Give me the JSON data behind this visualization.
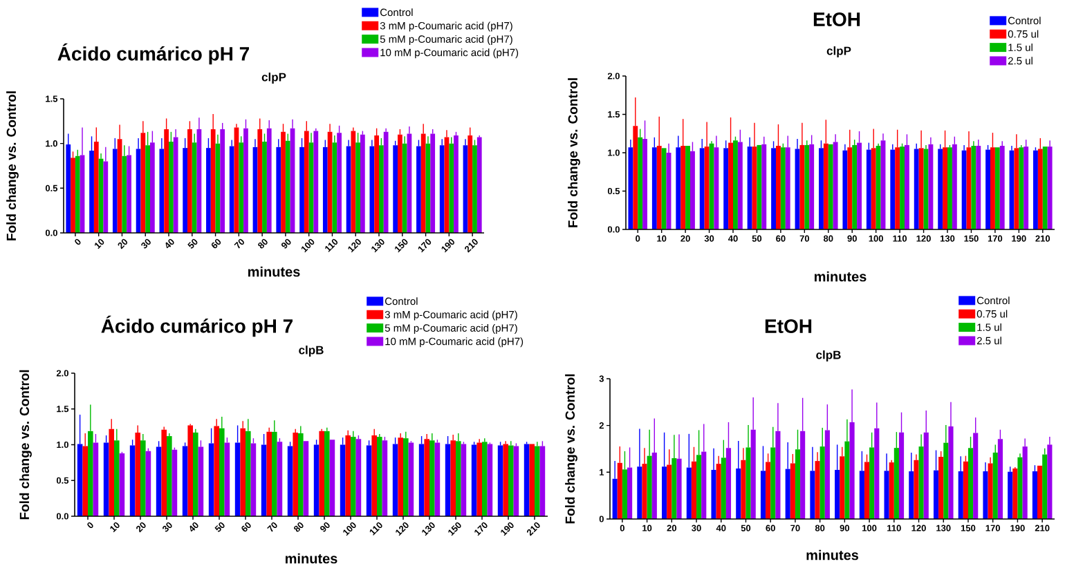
{
  "chart_data": [
    {
      "type": "bar",
      "title": "Ácido cumárico pH 7",
      "subtitle": "clpP",
      "xlabel": "minutes",
      "ylabel": "Fold change vs. Control",
      "legend": "top right",
      "categories": [
        "0",
        "10",
        "20",
        "30",
        "40",
        "50",
        "60",
        "70",
        "80",
        "90",
        "100",
        "110",
        "120",
        "130",
        "150",
        "170",
        "190",
        "210"
      ],
      "ylim": [
        0,
        1.5
      ],
      "yticks": [
        {
          "value": 0,
          "label": "0.0"
        },
        0.5,
        {
          "value": 1,
          "label": "1.0"
        },
        1.5
      ],
      "series": [
        {
          "name": "Control",
          "color": "#0000ff",
          "values": [
            0.99,
            0.92,
            0.94,
            0.94,
            0.94,
            0.95,
            0.95,
            0.97,
            0.96,
            0.96,
            0.96,
            0.96,
            0.97,
            0.97,
            0.98,
            0.97,
            0.98,
            0.98
          ],
          "errors": [
            [
              0.99,
              1.11
            ],
            [
              0.92,
              1.08
            ],
            [
              0.94,
              1.06
            ],
            [
              0.94,
              1.06
            ],
            [
              0.94,
              1.06
            ],
            [
              0.95,
              1.06
            ],
            [
              0.95,
              1.06
            ],
            [
              0.97,
              1.04
            ],
            [
              0.96,
              1.05
            ],
            [
              0.96,
              1.05
            ],
            [
              0.96,
              1.06
            ],
            [
              0.96,
              1.04
            ],
            [
              0.97,
              1.04
            ],
            [
              0.97,
              1.04
            ],
            [
              0.98,
              1.03
            ],
            [
              0.97,
              1.04
            ],
            [
              0.98,
              1.05
            ],
            [
              0.98,
              1.05
            ]
          ]
        },
        {
          "name": "3 mM p-Coumaric acid (pH7)",
          "color": "#ff0000",
          "values": [
            0.84,
            1.02,
            1.05,
            1.12,
            1.16,
            1.16,
            1.16,
            1.18,
            1.16,
            1.13,
            1.14,
            1.13,
            1.14,
            1.09,
            1.1,
            1.11,
            1.07,
            1.09
          ],
          "errors": [
            [
              0.84,
              0.91
            ],
            [
              1.02,
              1.18
            ],
            [
              1.05,
              1.21
            ],
            [
              1.12,
              1.25
            ],
            [
              1.16,
              1.28
            ],
            [
              1.16,
              1.25
            ],
            [
              1.16,
              1.33
            ],
            [
              1.18,
              1.22
            ],
            [
              1.16,
              1.28
            ],
            [
              1.13,
              1.22
            ],
            [
              1.14,
              1.25
            ],
            [
              1.13,
              1.22
            ],
            [
              1.14,
              1.18
            ],
            [
              1.09,
              1.17
            ],
            [
              1.1,
              1.16
            ],
            [
              1.11,
              1.22
            ],
            [
              1.07,
              1.15
            ],
            [
              1.09,
              1.18
            ]
          ]
        },
        {
          "name": "5 mM p-Coumaric acid (pH7)",
          "color": "#00bb00",
          "values": [
            0.86,
            0.83,
            0.86,
            0.98,
            1.02,
            1.01,
            1.0,
            1.01,
            1.02,
            1.03,
            1.01,
            1.01,
            1.01,
            0.98,
            1.0,
            1.0,
            1.0,
            0.98
          ],
          "errors": [
            [
              0.86,
              0.93
            ],
            [
              0.83,
              0.89
            ],
            [
              0.86,
              0.98
            ],
            [
              0.98,
              1.13
            ],
            [
              1.02,
              1.13
            ],
            [
              1.01,
              1.11
            ],
            [
              1.0,
              1.1
            ],
            [
              1.01,
              1.08
            ],
            [
              1.02,
              1.11
            ],
            [
              1.03,
              1.11
            ],
            [
              1.01,
              1.12
            ],
            [
              1.01,
              1.09
            ],
            [
              1.01,
              1.12
            ],
            [
              0.98,
              1.06
            ],
            [
              1.0,
              1.08
            ],
            [
              1.0,
              1.08
            ],
            [
              1.0,
              1.07
            ],
            [
              0.98,
              1.04
            ]
          ]
        },
        {
          "name": "10 mM p-Coumaric acid (pH7)",
          "color": "#9900ee",
          "values": [
            0.87,
            0.8,
            0.87,
            1.01,
            1.07,
            1.16,
            1.16,
            1.17,
            1.17,
            1.17,
            1.14,
            1.12,
            1.1,
            1.13,
            1.11,
            1.11,
            1.09,
            1.07
          ],
          "errors": [
            [
              0.87,
              1.18
            ],
            [
              0.8,
              0.96
            ],
            [
              0.87,
              0.97
            ],
            [
              1.01,
              1.14
            ],
            [
              1.07,
              1.16
            ],
            [
              1.16,
              1.29
            ],
            [
              1.16,
              1.23
            ],
            [
              1.17,
              1.27
            ],
            [
              1.17,
              1.26
            ],
            [
              1.17,
              1.27
            ],
            [
              1.14,
              1.17
            ],
            [
              1.12,
              1.2
            ],
            [
              1.1,
              1.14
            ],
            [
              1.13,
              1.17
            ],
            [
              1.11,
              1.19
            ],
            [
              1.11,
              1.16
            ],
            [
              1.09,
              1.13
            ],
            [
              1.07,
              1.09
            ]
          ]
        }
      ]
    },
    {
      "type": "bar",
      "title": "EtOH",
      "subtitle": "clpP",
      "xlabel": "minutes",
      "ylabel": "Fold change vs. Control",
      "legend": "top right",
      "categories": [
        "0",
        "10",
        "20",
        "30",
        "40",
        "50",
        "60",
        "70",
        "80",
        "90",
        "100",
        "110",
        "120",
        "130",
        "150",
        "170",
        "190",
        "210"
      ],
      "ylim": [
        0,
        2
      ],
      "yticks": [
        {
          "value": 0,
          "label": "0.0"
        },
        0.5,
        {
          "value": 1,
          "label": "1.0"
        },
        1.5,
        {
          "value": 2,
          "label": "2.0"
        }
      ],
      "series": [
        {
          "name": "Control",
          "color": "#0000ff",
          "values": [
            1.07,
            1.07,
            1.07,
            1.06,
            1.06,
            1.08,
            1.06,
            1.05,
            1.06,
            1.03,
            1.04,
            1.04,
            1.05,
            1.05,
            1.03,
            1.04,
            1.03,
            1.03
          ],
          "errors": [
            [
              1.07,
              1.17
            ],
            [
              1.07,
              1.2
            ],
            [
              1.07,
              1.22
            ],
            [
              1.06,
              1.18
            ],
            [
              1.06,
              1.16
            ],
            [
              1.08,
              1.2
            ],
            [
              1.06,
              1.15
            ],
            [
              1.05,
              1.18
            ],
            [
              1.06,
              1.16
            ],
            [
              1.03,
              1.11
            ],
            [
              1.04,
              1.13
            ],
            [
              1.04,
              1.11
            ],
            [
              1.05,
              1.12
            ],
            [
              1.05,
              1.11
            ],
            [
              1.03,
              1.1
            ],
            [
              1.04,
              1.1
            ],
            [
              1.03,
              1.09
            ],
            [
              1.03,
              1.07
            ]
          ]
        },
        {
          "name": "0.75 ul",
          "color": "#ff0000",
          "values": [
            1.35,
            1.09,
            1.09,
            1.08,
            1.13,
            1.08,
            1.09,
            1.1,
            1.12,
            1.07,
            1.06,
            1.07,
            1.06,
            1.07,
            1.07,
            1.07,
            1.06,
            1.05
          ],
          "errors": [
            [
              1.35,
              1.72
            ],
            [
              1.09,
              1.47
            ],
            [
              1.09,
              1.44
            ],
            [
              1.08,
              1.4
            ],
            [
              1.13,
              1.46
            ],
            [
              1.08,
              1.39
            ],
            [
              1.09,
              1.37
            ],
            [
              1.1,
              1.39
            ],
            [
              1.12,
              1.43
            ],
            [
              1.07,
              1.3
            ],
            [
              1.06,
              1.31
            ],
            [
              1.07,
              1.3
            ],
            [
              1.06,
              1.29
            ],
            [
              1.07,
              1.29
            ],
            [
              1.07,
              1.28
            ],
            [
              1.07,
              1.26
            ],
            [
              1.06,
              1.24
            ],
            [
              1.05,
              1.19
            ]
          ]
        },
        {
          "name": "1.5 ul",
          "color": "#00bb00",
          "values": [
            1.2,
            1.06,
            1.09,
            1.12,
            1.16,
            1.1,
            1.07,
            1.1,
            1.11,
            1.1,
            1.09,
            1.08,
            1.05,
            1.07,
            1.09,
            1.07,
            1.07,
            1.08
          ],
          "errors": [
            [
              1.2,
              1.31
            ],
            null,
            null,
            [
              1.12,
              1.15
            ],
            [
              1.16,
              1.21
            ],
            null,
            [
              1.07,
              1.12
            ],
            [
              1.1,
              1.16
            ],
            null,
            [
              1.1,
              1.17
            ],
            [
              1.09,
              1.12
            ],
            [
              1.08,
              1.12
            ],
            [
              1.05,
              1.1
            ],
            [
              1.07,
              1.1
            ],
            [
              1.09,
              1.15
            ],
            null,
            [
              1.07,
              1.1
            ],
            null
          ]
        },
        {
          "name": "2.5 ul",
          "color": "#9900ee",
          "values": [
            1.18,
            1.0,
            1.02,
            1.07,
            1.14,
            1.11,
            1.07,
            1.11,
            1.14,
            1.13,
            1.16,
            1.1,
            1.11,
            1.11,
            1.09,
            1.09,
            1.08,
            1.08
          ],
          "errors": [
            [
              1.18,
              1.42
            ],
            [
              1.0,
              1.12
            ],
            [
              1.02,
              1.14
            ],
            [
              1.07,
              1.22
            ],
            [
              1.14,
              1.3
            ],
            [
              1.11,
              1.21
            ],
            [
              1.07,
              1.22
            ],
            [
              1.11,
              1.23
            ],
            [
              1.14,
              1.24
            ],
            [
              1.13,
              1.28
            ],
            [
              1.16,
              1.25
            ],
            [
              1.1,
              1.24
            ],
            [
              1.11,
              1.2
            ],
            [
              1.11,
              1.21
            ],
            [
              1.09,
              1.17
            ],
            [
              1.09,
              1.15
            ],
            [
              1.08,
              1.17
            ],
            [
              1.08,
              1.16
            ]
          ]
        }
      ]
    },
    {
      "type": "bar",
      "title": "Ácido cumárico pH 7",
      "subtitle": "clpB",
      "xlabel": "minutes",
      "ylabel": "Fold change vs. Control",
      "legend": "top right",
      "categories": [
        "0",
        "10",
        "20",
        "30",
        "40",
        "50",
        "60",
        "70",
        "80",
        "90",
        "100",
        "110",
        "120",
        "130",
        "150",
        "170",
        "190",
        "210"
      ],
      "ylim": [
        0,
        2
      ],
      "yticks": [
        {
          "value": 0,
          "label": "0.0"
        },
        0.5,
        {
          "value": 1,
          "label": "1.0"
        },
        1.5,
        {
          "value": 2,
          "label": "2.0"
        }
      ],
      "series": [
        {
          "name": "Control",
          "color": "#0000ff",
          "values": [
            1.01,
            1.03,
            0.99,
            0.97,
            0.98,
            1.02,
            1.03,
            1.0,
            0.98,
            1.0,
            1.0,
            0.99,
            1.01,
            1.01,
            1.01,
            1.0,
            0.99,
            1.01
          ],
          "errors": [
            [
              1.01,
              1.42
            ],
            [
              1.03,
              1.13
            ],
            [
              0.99,
              1.07
            ],
            [
              0.97,
              1.05
            ],
            [
              0.98,
              1.03
            ],
            [
              1.02,
              1.23
            ],
            [
              1.03,
              1.27
            ],
            [
              1.0,
              1.15
            ],
            [
              0.98,
              1.04
            ],
            [
              1.0,
              1.07
            ],
            [
              1.0,
              1.1
            ],
            [
              0.99,
              1.06
            ],
            [
              1.01,
              1.1
            ],
            [
              1.01,
              1.12
            ],
            [
              1.01,
              1.12
            ],
            [
              1.0,
              1.04
            ],
            [
              0.99,
              1.04
            ],
            [
              1.01,
              1.04
            ]
          ]
        },
        {
          "name": "3 mM p-Coumaric acid (pH7)",
          "color": "#ff0000",
          "values": [
            0.98,
            1.22,
            1.17,
            1.21,
            1.27,
            1.26,
            1.23,
            1.18,
            1.17,
            1.19,
            1.13,
            1.13,
            1.1,
            1.08,
            1.06,
            1.03,
            1.01,
            1.01
          ],
          "errors": [
            [
              0.98,
              1.16
            ],
            [
              1.22,
              1.36
            ],
            [
              1.17,
              1.27
            ],
            [
              1.21,
              1.25
            ],
            [
              1.27,
              1.29
            ],
            [
              1.26,
              1.36
            ],
            [
              1.23,
              1.33
            ],
            [
              1.18,
              1.24
            ],
            [
              1.17,
              1.22
            ],
            [
              1.19,
              1.22
            ],
            [
              1.13,
              1.2
            ],
            [
              1.13,
              1.22
            ],
            [
              1.1,
              1.16
            ],
            [
              1.08,
              1.15
            ],
            [
              1.06,
              1.14
            ],
            [
              1.03,
              1.08
            ],
            [
              1.01,
              1.05
            ],
            null
          ]
        },
        {
          "name": "5 mM p-Coumaric acid (pH7)",
          "color": "#00bb00",
          "values": [
            1.19,
            1.06,
            1.06,
            1.12,
            1.17,
            1.23,
            1.19,
            1.18,
            1.16,
            1.19,
            1.11,
            1.11,
            1.09,
            1.06,
            1.05,
            1.04,
            0.99,
            0.98
          ],
          "errors": [
            [
              1.19,
              1.56
            ],
            [
              1.06,
              1.22
            ],
            [
              1.06,
              1.15
            ],
            [
              1.12,
              1.16
            ],
            [
              1.17,
              1.22
            ],
            [
              1.23,
              1.39
            ],
            [
              1.19,
              1.36
            ],
            [
              1.18,
              1.34
            ],
            [
              1.16,
              1.26
            ],
            [
              1.19,
              1.24
            ],
            [
              1.11,
              1.19
            ],
            [
              1.11,
              1.15
            ],
            [
              1.09,
              1.18
            ],
            [
              1.06,
              1.16
            ],
            [
              1.05,
              1.16
            ],
            [
              1.04,
              1.09
            ],
            [
              0.99,
              1.05
            ],
            [
              0.98,
              1.04
            ]
          ]
        },
        {
          "name": "10 mM p-Coumaric acid (pH7)",
          "color": "#9900ee",
          "values": [
            1.03,
            0.88,
            0.91,
            0.93,
            0.97,
            1.03,
            1.02,
            1.04,
            1.05,
            1.07,
            1.08,
            1.06,
            1.03,
            1.03,
            1.01,
            1.01,
            0.98,
            0.98
          ],
          "errors": [
            [
              1.03,
              1.15
            ],
            [
              0.88,
              0.9
            ],
            [
              0.91,
              0.95
            ],
            [
              0.93,
              0.96
            ],
            [
              0.97,
              1.06
            ],
            [
              1.03,
              1.1
            ],
            [
              1.02,
              1.09
            ],
            [
              1.04,
              1.09
            ],
            null,
            null,
            [
              1.08,
              1.13
            ],
            [
              1.06,
              1.11
            ],
            [
              1.03,
              1.05
            ],
            [
              1.03,
              1.07
            ],
            [
              1.01,
              1.04
            ],
            [
              1.01,
              1.03
            ],
            [
              0.98,
              1.02
            ],
            [
              0.98,
              1.05
            ]
          ]
        }
      ]
    },
    {
      "type": "bar",
      "title": "EtOH",
      "subtitle": "clpB",
      "xlabel": "minutes",
      "ylabel": "Fold change vs. Control",
      "legend": "top right",
      "categories": [
        "0",
        "10",
        "20",
        "30",
        "40",
        "50",
        "60",
        "70",
        "80",
        "90",
        "100",
        "110",
        "120",
        "130",
        "150",
        "170",
        "190",
        "210"
      ],
      "ylim": [
        0,
        3
      ],
      "yticks": [
        0,
        1,
        2,
        3
      ],
      "series": [
        {
          "name": "Control",
          "color": "#0000ff",
          "values": [
            0.86,
            1.12,
            1.12,
            1.1,
            1.05,
            1.08,
            1.03,
            1.07,
            1.03,
            1.05,
            1.03,
            1.03,
            1.02,
            1.04,
            1.02,
            1.02,
            1.01,
            1.02
          ],
          "errors": [
            [
              0.86,
              1.24
            ],
            [
              1.12,
              1.93
            ],
            [
              1.12,
              1.85
            ],
            [
              1.1,
              1.82
            ],
            [
              1.05,
              1.51
            ],
            [
              1.08,
              1.67
            ],
            [
              1.03,
              1.56
            ],
            [
              1.07,
              1.64
            ],
            [
              1.03,
              1.54
            ],
            [
              1.05,
              1.59
            ],
            [
              1.03,
              1.45
            ],
            [
              1.03,
              1.4
            ],
            [
              1.02,
              1.42
            ],
            [
              1.04,
              1.47
            ],
            [
              1.02,
              1.34
            ],
            [
              1.02,
              1.21
            ],
            [
              1.01,
              1.12
            ],
            [
              1.02,
              1.15
            ]
          ]
        },
        {
          "name": "0.75 ul",
          "color": "#ff0000",
          "values": [
            1.2,
            1.18,
            1.16,
            1.23,
            1.18,
            1.26,
            1.22,
            1.19,
            1.24,
            1.34,
            1.22,
            1.21,
            1.26,
            1.33,
            1.23,
            1.19,
            1.08,
            1.14
          ],
          "errors": [
            [
              1.2,
              1.55
            ],
            [
              1.18,
              1.52
            ],
            [
              1.16,
              1.49
            ],
            [
              1.23,
              1.54
            ],
            [
              1.18,
              1.35
            ],
            [
              1.26,
              1.52
            ],
            [
              1.22,
              1.4
            ],
            [
              1.19,
              1.39
            ],
            [
              1.24,
              1.43
            ],
            [
              1.34,
              1.54
            ],
            [
              1.22,
              1.38
            ],
            [
              1.21,
              1.26
            ],
            [
              1.26,
              1.38
            ],
            [
              1.33,
              1.45
            ],
            [
              1.23,
              1.35
            ],
            [
              1.19,
              1.32
            ],
            [
              1.08,
              1.11
            ],
            null
          ]
        },
        {
          "name": "1.5 ul",
          "color": "#00bb00",
          "values": [
            1.06,
            1.35,
            1.3,
            1.37,
            1.31,
            1.53,
            1.53,
            1.49,
            1.55,
            1.66,
            1.53,
            1.52,
            1.55,
            1.63,
            1.52,
            1.42,
            1.32,
            1.38
          ],
          "errors": [
            [
              1.06,
              1.45
            ],
            [
              1.35,
              1.91
            ],
            [
              1.3,
              1.8
            ],
            [
              1.37,
              1.9
            ],
            [
              1.31,
              1.69
            ],
            [
              1.53,
              2.01
            ],
            [
              1.53,
              1.97
            ],
            [
              1.49,
              1.91
            ],
            [
              1.55,
              1.95
            ],
            [
              1.66,
              2.13
            ],
            [
              1.53,
              1.85
            ],
            [
              1.52,
              1.86
            ],
            [
              1.55,
              1.81
            ],
            [
              1.63,
              2.01
            ],
            [
              1.52,
              1.76
            ],
            [
              1.42,
              1.59
            ],
            [
              1.32,
              1.4
            ],
            [
              1.38,
              1.51
            ]
          ]
        },
        {
          "name": "2.5 ul",
          "color": "#9900ee",
          "values": [
            1.1,
            1.42,
            1.29,
            1.44,
            1.52,
            1.91,
            1.88,
            1.88,
            1.9,
            2.07,
            1.94,
            1.85,
            1.85,
            1.98,
            1.84,
            1.71,
            1.55,
            1.59
          ],
          "errors": [
            [
              1.1,
              1.53
            ],
            [
              1.42,
              2.15
            ],
            [
              1.29,
              1.81
            ],
            [
              1.44,
              2.03
            ],
            [
              1.52,
              2.07
            ],
            [
              1.91,
              2.6
            ],
            [
              1.88,
              2.48
            ],
            [
              1.88,
              2.59
            ],
            [
              1.9,
              2.45
            ],
            [
              2.07,
              2.77
            ],
            [
              1.94,
              2.49
            ],
            [
              1.85,
              2.28
            ],
            [
              1.85,
              2.32
            ],
            [
              1.98,
              2.5
            ],
            [
              1.84,
              2.17
            ],
            [
              1.71,
              1.91
            ],
            [
              1.55,
              1.72
            ],
            [
              1.59,
              1.76
            ]
          ]
        }
      ]
    }
  ]
}
